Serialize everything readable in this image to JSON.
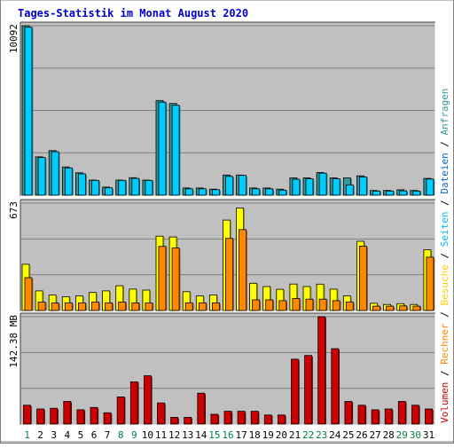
{
  "chart_data": [
    {
      "type": "bar",
      "panel": "top",
      "title": "Tages-Statistik im Monat August 2020",
      "y_max_label": "10092",
      "ylim": [
        0,
        10092
      ],
      "grid": true,
      "categories": [
        "1",
        "2",
        "3",
        "4",
        "5",
        "6",
        "7",
        "8",
        "9",
        "10",
        "11",
        "12",
        "13",
        "14",
        "15",
        "16",
        "17",
        "18",
        "19",
        "20",
        "21",
        "22",
        "23",
        "24",
        "25",
        "26",
        "27",
        "28",
        "29",
        "30",
        "31"
      ],
      "series": [
        {
          "name": "Anfragen",
          "color": "#339999",
          "values": [
            10092,
            2280,
            2650,
            1680,
            1330,
            900,
            480,
            900,
            1040,
            900,
            5640,
            5460,
            430,
            430,
            360,
            1200,
            1200,
            430,
            430,
            360,
            1030,
            1030,
            1350,
            1030,
            1030,
            1150,
            280,
            280,
            320,
            280,
            1000
          ]
        },
        {
          "name": "Dateien",
          "color": "#00ccff",
          "values": [
            10000,
            2240,
            2590,
            1620,
            1270,
            880,
            440,
            880,
            1000,
            880,
            5540,
            5350,
            380,
            380,
            330,
            1120,
            1180,
            380,
            380,
            300,
            950,
            980,
            1310,
            980,
            610,
            1090,
            250,
            250,
            260,
            250,
            960
          ]
        }
      ]
    },
    {
      "type": "bar",
      "panel": "middle",
      "y_max_label": "673",
      "ylim": [
        0,
        673
      ],
      "grid": true,
      "categories": [
        "1",
        "2",
        "3",
        "4",
        "5",
        "6",
        "7",
        "8",
        "9",
        "10",
        "11",
        "12",
        "13",
        "14",
        "15",
        "16",
        "17",
        "18",
        "19",
        "20",
        "21",
        "22",
        "23",
        "24",
        "25",
        "26",
        "27",
        "28",
        "29",
        "30",
        "31"
      ],
      "series": [
        {
          "name": "Seiten",
          "color": "#0000cc",
          "values": [
            0,
            0,
            0,
            0,
            0,
            0,
            0,
            0,
            0,
            0,
            0,
            0,
            0,
            0,
            0,
            0,
            0,
            0,
            0,
            0,
            0,
            0,
            0,
            0,
            0,
            0,
            0,
            0,
            0,
            0,
            0
          ]
        },
        {
          "name": "Besuche",
          "color": "#ffff00",
          "values": [
            290,
            123,
            97,
            86,
            92,
            113,
            123,
            155,
            134,
            128,
            466,
            461,
            118,
            91,
            98,
            567,
            643,
            171,
            150,
            133,
            166,
            150,
            165,
            134,
            91,
            434,
            45,
            38,
            43,
            38,
            381
          ]
        },
        {
          "name": "Rechner",
          "color": "#ff8800",
          "values": [
            206,
            53,
            47,
            48,
            48,
            53,
            48,
            53,
            48,
            48,
            402,
            392,
            48,
            48,
            48,
            452,
            507,
            67,
            67,
            62,
            75,
            71,
            71,
            62,
            53,
            403,
            27,
            27,
            29,
            27,
            334
          ]
        }
      ]
    },
    {
      "type": "bar",
      "panel": "bottom",
      "y_max_label": "142.38 MB",
      "ylim": [
        0,
        142.38
      ],
      "grid": true,
      "categories": [
        "1",
        "2",
        "3",
        "4",
        "5",
        "6",
        "7",
        "8",
        "9",
        "10",
        "11",
        "12",
        "13",
        "14",
        "15",
        "16",
        "17",
        "18",
        "19",
        "20",
        "21",
        "22",
        "23",
        "24",
        "25",
        "26",
        "27",
        "28",
        "29",
        "30",
        "31"
      ],
      "weekend_indices": [
        0,
        7,
        8,
        14,
        15,
        21,
        22,
        28,
        29
      ],
      "series": [
        {
          "name": "Volumen",
          "color": "#cc0000",
          "values": [
            25,
            20,
            21,
            30,
            19,
            22,
            15,
            36,
            56,
            64,
            28,
            9,
            9,
            41,
            13,
            17,
            17,
            17,
            12,
            12,
            86,
            91,
            142.38,
            100,
            30,
            25,
            19,
            20,
            30,
            25,
            20
          ]
        }
      ]
    }
  ],
  "legend_vertical": [
    {
      "name": "Anfragen",
      "color": "#339999"
    },
    {
      "name": "Dateien",
      "color": "#0066cc"
    },
    {
      "name": "Seiten",
      "color": "#00bbff"
    },
    {
      "name": "Besuche",
      "color": "#ffcc00"
    },
    {
      "name": "Rechner",
      "color": "#ff8800"
    },
    {
      "name": "Volumen",
      "color": "#cc0000"
    }
  ],
  "legend_separator": " / ",
  "colors": {
    "title": "#0000cc",
    "plot_background": "#c0c0c0",
    "frame_background": "#ffffff",
    "weekday_label": "#000000",
    "weekend_label": "#008040"
  }
}
